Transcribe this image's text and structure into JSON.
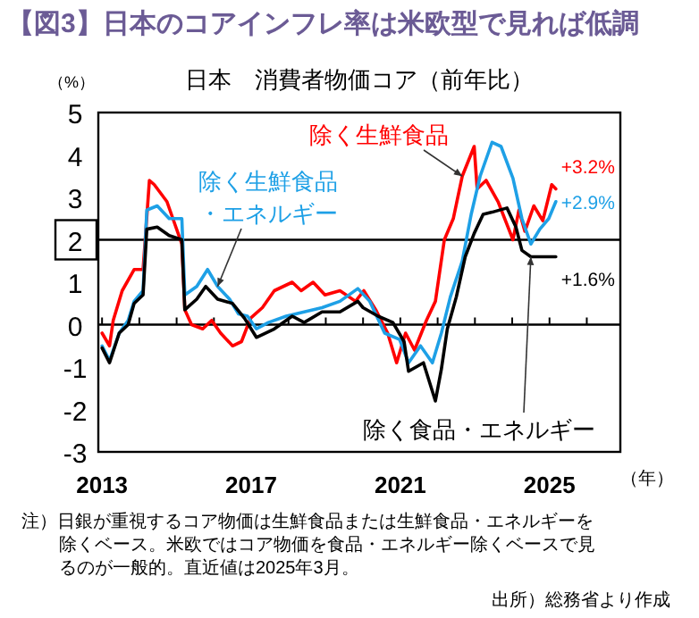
{
  "chart_data": {
    "type": "line",
    "title": "【図3】日本のコアインフレ率は米欧型で見れば低調",
    "subtitle": "日本　消費者物価コア（前年比）",
    "ylabel": "（%）",
    "xlabel": "（年）",
    "xlim": [
      2012.9,
      2026.9
    ],
    "xticks": [
      2013,
      {
        "value": 2014,
        "label": null
      },
      {
        "value": 2015,
        "label": null
      },
      {
        "value": 2016,
        "label": null
      },
      2017,
      {
        "value": 2018,
        "label": null
      },
      {
        "value": 2019,
        "label": null
      },
      {
        "value": 2020,
        "label": null
      },
      2021,
      {
        "value": 2022,
        "label": null
      },
      {
        "value": 2023,
        "label": null
      },
      {
        "value": 2024,
        "label": null
      },
      2025,
      {
        "value": 2026,
        "label": null
      }
    ],
    "ylim": [
      -3,
      5
    ],
    "yticks": [
      -3,
      -2,
      -1,
      0,
      1,
      2,
      3,
      4,
      5
    ],
    "ref_lines": [
      {
        "axis": "y",
        "value": 0,
        "color": "#000000"
      },
      {
        "axis": "y",
        "value": 2,
        "color": "#000000"
      }
    ],
    "grid": false,
    "legend": false,
    "marker": "none",
    "line_style": "solid",
    "series": [
      {
        "name": "除く生鮮食品",
        "color": "#ff0000",
        "x": [
          2013.0,
          2013.2,
          2013.3,
          2013.54,
          2013.86,
          2014.1,
          2014.27,
          2014.4,
          2014.74,
          2014.98,
          2015.14,
          2015.22,
          2015.4,
          2015.7,
          2015.94,
          2016.18,
          2016.5,
          2016.74,
          2016.98,
          2017.3,
          2017.62,
          2018.1,
          2018.34,
          2018.66,
          2018.98,
          2019.38,
          2019.8,
          2020.02,
          2020.34,
          2020.66,
          2020.9,
          2021.14,
          2021.38,
          2021.7,
          2021.94,
          2022.18,
          2022.42,
          2022.66,
          2022.98,
          2023.06,
          2023.3,
          2023.62,
          2024.02,
          2024.18,
          2024.34,
          2024.58,
          2024.82,
          2025.06,
          2025.17
        ],
        "values": [
          -0.2,
          -0.5,
          0.1,
          0.8,
          1.3,
          1.3,
          3.4,
          3.3,
          2.9,
          2.3,
          1.9,
          0.35,
          0.0,
          -0.1,
          0.1,
          -0.2,
          -0.5,
          -0.4,
          0.15,
          0.4,
          0.8,
          1.0,
          0.8,
          1.0,
          0.7,
          0.8,
          0.55,
          0.8,
          0.35,
          -0.2,
          -0.9,
          -0.2,
          -0.6,
          0.1,
          0.55,
          2.0,
          2.5,
          3.5,
          4.2,
          3.2,
          3.4,
          2.9,
          2.0,
          2.7,
          2.2,
          2.8,
          2.45,
          3.3,
          3.2
        ],
        "value_labels": [
          null,
          null,
          null,
          null,
          null,
          null,
          null,
          null,
          null,
          null,
          null,
          null,
          null,
          null,
          null,
          null,
          null,
          null,
          null,
          null,
          null,
          null,
          null,
          null,
          null,
          null,
          null,
          null,
          null,
          null,
          null,
          null,
          null,
          null,
          null,
          null,
          null,
          null,
          null,
          null,
          null,
          null,
          null,
          null,
          null,
          null,
          null,
          null,
          "+3.2%"
        ]
      },
      {
        "name": "除く生鮮食品・エネルギー",
        "color": "#1ea0e6",
        "x": [
          2013.0,
          2013.2,
          2013.46,
          2013.7,
          2013.86,
          2014.1,
          2014.2,
          2014.48,
          2014.8,
          2015.14,
          2015.22,
          2015.54,
          2015.83,
          2016.1,
          2016.42,
          2016.66,
          2016.9,
          2017.14,
          2017.46,
          2017.94,
          2018.42,
          2018.9,
          2019.38,
          2019.86,
          2020.18,
          2020.58,
          2020.98,
          2021.22,
          2021.54,
          2021.86,
          2022.1,
          2022.34,
          2022.66,
          2022.9,
          2023.14,
          2023.46,
          2023.7,
          2024.02,
          2024.26,
          2024.5,
          2024.74,
          2024.98,
          2025.17
        ],
        "values": [
          -0.5,
          -0.85,
          -0.2,
          0.1,
          0.55,
          0.8,
          2.7,
          2.8,
          2.5,
          2.5,
          0.7,
          0.9,
          1.3,
          0.9,
          0.6,
          0.25,
          0.2,
          -0.1,
          0.05,
          0.2,
          0.3,
          0.4,
          0.55,
          0.85,
          0.55,
          -0.2,
          -0.35,
          -0.9,
          -0.5,
          -0.9,
          -0.2,
          0.65,
          1.5,
          2.6,
          3.5,
          4.3,
          4.2,
          3.45,
          2.5,
          1.9,
          2.25,
          2.5,
          2.9
        ],
        "value_labels": [
          null,
          null,
          null,
          null,
          null,
          null,
          null,
          null,
          null,
          null,
          null,
          null,
          null,
          null,
          null,
          null,
          null,
          null,
          null,
          null,
          null,
          null,
          null,
          null,
          null,
          null,
          null,
          null,
          null,
          null,
          null,
          null,
          null,
          null,
          null,
          null,
          null,
          null,
          null,
          null,
          null,
          null,
          "+2.9%"
        ]
      },
      {
        "name": "除く食品・エネルギー",
        "color": "#000000",
        "x": [
          2013.0,
          2013.2,
          2013.46,
          2013.7,
          2013.86,
          2014.1,
          2014.2,
          2014.48,
          2014.8,
          2015.14,
          2015.22,
          2015.54,
          2015.78,
          2016.1,
          2016.5,
          2016.82,
          2017.14,
          2017.62,
          2018.1,
          2018.42,
          2018.9,
          2019.38,
          2019.86,
          2020.0,
          2020.4,
          2020.8,
          2021.1,
          2021.22,
          2021.62,
          2021.94,
          2022.1,
          2022.26,
          2022.5,
          2022.74,
          2022.98,
          2023.22,
          2023.46,
          2023.86,
          2024.1,
          2024.26,
          2024.5,
          2024.82,
          2025.17
        ],
        "values": [
          -0.55,
          -0.9,
          -0.2,
          0.0,
          0.5,
          0.7,
          2.25,
          2.3,
          2.1,
          2.0,
          0.35,
          0.6,
          0.9,
          0.6,
          0.5,
          0.15,
          -0.3,
          -0.1,
          0.2,
          0.05,
          0.3,
          0.3,
          0.55,
          0.4,
          0.2,
          0.05,
          -0.4,
          -1.1,
          -0.9,
          -1.8,
          -1.05,
          -0.1,
          0.65,
          1.6,
          2.15,
          2.6,
          2.65,
          2.75,
          2.3,
          1.75,
          1.6,
          1.6,
          1.6
        ],
        "value_labels": [
          null,
          null,
          null,
          null,
          null,
          null,
          null,
          null,
          null,
          null,
          null,
          null,
          null,
          null,
          null,
          null,
          null,
          null,
          null,
          null,
          null,
          null,
          null,
          null,
          null,
          null,
          null,
          null,
          null,
          null,
          null,
          null,
          null,
          null,
          null,
          null,
          null,
          null,
          null,
          null,
          null,
          null,
          "+1.6%"
        ]
      }
    ],
    "annotations": [
      "注）日銀が重視するコア物価は生鮮食品または生鮮食品・エネルギーを除くベース。米欧ではコア物価を食品・エネルギー除くベースで見るのが一般的。直近値は2025年3月。",
      "出所）総務省より作成"
    ]
  }
}
